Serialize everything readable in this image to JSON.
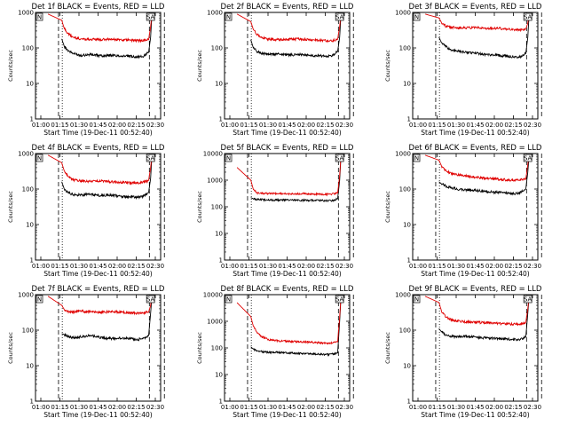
{
  "colors": {
    "events": "#000000",
    "lld": "#e00000",
    "background": "#ffffff",
    "axes": "#000000"
  },
  "chart_data": [
    {
      "type": "line",
      "title": "Det 1f BLACK = Events, RED = LLD",
      "xlabel": "Start Time (19-Dec-11 00:52:40)",
      "ylabel": "Counts/sec",
      "y_scale": "log",
      "ylim": [
        1,
        1000
      ],
      "yticks": [
        "1",
        "10",
        "100",
        "1000"
      ],
      "xlim_minutes": [
        -10,
        40
      ],
      "xticks": [
        "01:00",
        "01:15",
        "01:30",
        "01:45",
        "02:00",
        "02:15",
        "02:30"
      ],
      "tags": [
        "N",
        "SA"
      ],
      "vlines_dotted": [
        0.7
      ],
      "vlines_dashed": [
        -0.8,
        35.5,
        41.5
      ],
      "grid": false,
      "series": [
        {
          "name": "Events",
          "color": "#000000",
          "x": [
            0.5,
            1.5,
            3,
            5,
            8,
            12,
            16,
            20,
            24,
            28,
            31,
            33,
            35.2,
            36,
            36.5
          ],
          "y": [
            180,
            110,
            85,
            70,
            62,
            65,
            60,
            62,
            60,
            58,
            56,
            57,
            75,
            200,
            900
          ]
        },
        {
          "name": "LLD",
          "color": "#e00000",
          "x": [
            -5,
            0.5,
            1.5,
            3,
            5,
            8,
            12,
            16,
            20,
            24,
            28,
            31,
            33,
            35.2,
            36,
            36.5
          ],
          "y": [
            900,
            600,
            350,
            250,
            200,
            180,
            175,
            170,
            175,
            170,
            165,
            160,
            165,
            170,
            400,
            900
          ]
        }
      ]
    },
    {
      "type": "line",
      "title": "Det 2f BLACK = Events, RED = LLD",
      "xlabel": "Start Time (19-Dec-11 00:52:40)",
      "ylabel": "Counts/sec",
      "y_scale": "log",
      "ylim": [
        1,
        1000
      ],
      "yticks": [
        "1",
        "10",
        "100",
        "1000"
      ],
      "xlim_minutes": [
        -10,
        40
      ],
      "xticks": [
        "01:00",
        "01:15",
        "01:30",
        "01:45",
        "02:00",
        "02:15",
        "02:30"
      ],
      "tags": [
        "N",
        "SA"
      ],
      "vlines_dotted": [
        0.7
      ],
      "vlines_dashed": [
        -0.8,
        35.5,
        41.5
      ],
      "grid": false,
      "series": [
        {
          "name": "Events",
          "color": "#000000",
          "x": [
            0.5,
            1.5,
            3,
            5,
            8,
            12,
            16,
            20,
            24,
            28,
            31,
            33,
            35.2,
            36,
            36.5
          ],
          "y": [
            170,
            100,
            80,
            70,
            65,
            68,
            63,
            65,
            62,
            60,
            58,
            60,
            80,
            200,
            900
          ]
        },
        {
          "name": "LLD",
          "color": "#e00000",
          "x": [
            -5,
            0.5,
            1.5,
            3,
            5,
            8,
            12,
            16,
            20,
            24,
            28,
            31,
            33,
            35.2,
            36,
            36.5
          ],
          "y": [
            900,
            550,
            330,
            240,
            190,
            175,
            170,
            175,
            180,
            170,
            165,
            160,
            160,
            175,
            400,
            900
          ]
        }
      ]
    },
    {
      "type": "line",
      "title": "Det 3f BLACK = Events, RED = LLD",
      "xlabel": "Start Time (19-Dec-11 00:52:40)",
      "ylabel": "Counts/sec",
      "y_scale": "log",
      "ylim": [
        1,
        1000
      ],
      "yticks": [
        "1",
        "10",
        "100",
        "1000"
      ],
      "xlim_minutes": [
        -10,
        40
      ],
      "xticks": [
        "01:00",
        "01:15",
        "01:30",
        "01:45",
        "02:00",
        "02:15",
        "02:30"
      ],
      "tags": [
        "N",
        "SA"
      ],
      "vlines_dotted": [
        0.7
      ],
      "vlines_dashed": [
        -0.8,
        35.5,
        41.5
      ],
      "grid": false,
      "series": [
        {
          "name": "Events",
          "color": "#000000",
          "x": [
            0.5,
            1.5,
            3,
            5,
            8,
            12,
            16,
            20,
            24,
            28,
            31,
            33,
            35.2,
            36,
            36.5
          ],
          "y": [
            200,
            140,
            110,
            90,
            80,
            75,
            70,
            65,
            62,
            58,
            55,
            56,
            70,
            200,
            900
          ]
        },
        {
          "name": "LLD",
          "color": "#e00000",
          "x": [
            -5,
            0.5,
            1.5,
            3,
            5,
            8,
            12,
            16,
            20,
            24,
            28,
            31,
            33,
            35.2,
            36,
            36.5
          ],
          "y": [
            900,
            700,
            520,
            420,
            380,
            370,
            370,
            365,
            360,
            355,
            340,
            330,
            320,
            340,
            500,
            900
          ]
        }
      ]
    },
    {
      "type": "line",
      "title": "Det 4f BLACK = Events, RED = LLD",
      "xlabel": "Start Time (19-Dec-11 00:52:40)",
      "ylabel": "Counts/sec",
      "y_scale": "log",
      "ylim": [
        1,
        1000
      ],
      "yticks": [
        "1",
        "10",
        "100",
        "1000"
      ],
      "xlim_minutes": [
        -10,
        40
      ],
      "xticks": [
        "01:00",
        "01:15",
        "01:30",
        "01:45",
        "02:00",
        "02:15",
        "02:30"
      ],
      "tags": [
        "N",
        "SA"
      ],
      "vlines_dotted": [
        0.7
      ],
      "vlines_dashed": [
        -0.8,
        35.5,
        41.5
      ],
      "grid": false,
      "series": [
        {
          "name": "Events",
          "color": "#000000",
          "x": [
            0.5,
            1.5,
            3,
            5,
            8,
            12,
            16,
            20,
            24,
            28,
            31,
            33,
            35.2,
            36,
            36.5
          ],
          "y": [
            160,
            100,
            80,
            70,
            68,
            72,
            65,
            68,
            62,
            60,
            58,
            62,
            80,
            200,
            900
          ]
        },
        {
          "name": "LLD",
          "color": "#e00000",
          "x": [
            -5,
            0.5,
            1.5,
            3,
            5,
            8,
            12,
            16,
            20,
            24,
            28,
            31,
            33,
            35.2,
            36,
            36.5
          ],
          "y": [
            900,
            550,
            320,
            230,
            180,
            170,
            165,
            170,
            160,
            155,
            150,
            150,
            155,
            175,
            400,
            900
          ]
        }
      ]
    },
    {
      "type": "line",
      "title": "Det 5f BLACK = Events, RED = LLD",
      "xlabel": "Start Time (19-Dec-11 00:52:40)",
      "ylabel": "Counts/sec",
      "y_scale": "log",
      "ylim": [
        1,
        10000
      ],
      "yticks": [
        "1",
        "10",
        "100",
        "1000",
        "10000"
      ],
      "xlim_minutes": [
        -10,
        40
      ],
      "xticks": [
        "01:00",
        "01:15",
        "01:30",
        "01:45",
        "02:00",
        "02:15",
        "02:30"
      ],
      "tags": [
        "N",
        "SA"
      ],
      "vlines_dotted": [
        0.7
      ],
      "vlines_dashed": [
        -0.8,
        35.5,
        41.5
      ],
      "grid": false,
      "series": [
        {
          "name": "Events",
          "color": "#000000",
          "x": [
            0.5,
            1.5,
            3,
            5,
            8,
            12,
            16,
            20,
            24,
            28,
            31,
            33,
            35.2,
            36,
            36.5
          ],
          "y": [
            220,
            200,
            190,
            185,
            180,
            180,
            178,
            175,
            175,
            172,
            170,
            170,
            200,
            1000,
            8000
          ]
        },
        {
          "name": "LLD",
          "color": "#e00000",
          "x": [
            -5,
            0.5,
            1.5,
            3,
            5,
            8,
            12,
            16,
            20,
            24,
            28,
            31,
            33,
            35.2,
            36,
            36.5
          ],
          "y": [
            3000,
            1000,
            450,
            330,
            320,
            315,
            310,
            305,
            310,
            305,
            300,
            295,
            300,
            330,
            1500,
            8000
          ]
        }
      ]
    },
    {
      "type": "line",
      "title": "Det 6f BLACK = Events, RED = LLD",
      "xlabel": "Start Time (19-Dec-11 00:52:40)",
      "ylabel": "Counts/sec",
      "y_scale": "log",
      "ylim": [
        1,
        1000
      ],
      "yticks": [
        "1",
        "10",
        "100",
        "1000"
      ],
      "xlim_minutes": [
        -10,
        40
      ],
      "xticks": [
        "01:00",
        "01:15",
        "01:30",
        "01:45",
        "02:00",
        "02:15",
        "02:30"
      ],
      "tags": [
        "N",
        "SA"
      ],
      "vlines_dotted": [
        0.7
      ],
      "vlines_dashed": [
        -0.8,
        35.5,
        41.5
      ],
      "grid": false,
      "series": [
        {
          "name": "Events",
          "color": "#000000",
          "x": [
            0.5,
            1.5,
            3,
            5,
            8,
            12,
            16,
            20,
            24,
            28,
            31,
            33,
            35.2,
            36,
            36.5
          ],
          "y": [
            160,
            140,
            125,
            110,
            100,
            95,
            90,
            85,
            80,
            78,
            75,
            80,
            100,
            300,
            900
          ]
        },
        {
          "name": "LLD",
          "color": "#e00000",
          "x": [
            -5,
            0.5,
            1.5,
            3,
            5,
            8,
            12,
            16,
            20,
            24,
            28,
            31,
            33,
            35.2,
            36,
            36.5
          ],
          "y": [
            900,
            650,
            450,
            330,
            280,
            250,
            230,
            210,
            200,
            190,
            180,
            175,
            180,
            190,
            500,
            900
          ]
        }
      ]
    },
    {
      "type": "line",
      "title": "Det 7f BLACK = Events, RED = LLD",
      "xlabel": "Start Time (19-Dec-11 00:52:40)",
      "ylabel": "Counts/sec",
      "y_scale": "log",
      "ylim": [
        1,
        1000
      ],
      "yticks": [
        "1",
        "10",
        "100",
        "1000"
      ],
      "xlim_minutes": [
        -10,
        40
      ],
      "xticks": [
        "01:00",
        "01:15",
        "01:30",
        "01:45",
        "02:00",
        "02:15",
        "02:30"
      ],
      "tags": [
        "N",
        "SA"
      ],
      "vlines_dotted": [
        0.7
      ],
      "vlines_dashed": [
        -0.8,
        35.5,
        41.5
      ],
      "grid": false,
      "series": [
        {
          "name": "Events",
          "color": "#000000",
          "x": [
            0.5,
            1.5,
            3,
            5,
            8,
            12,
            16,
            20,
            24,
            28,
            31,
            33,
            35.2,
            36,
            36.5
          ],
          "y": [
            80,
            75,
            65,
            62,
            65,
            70,
            62,
            58,
            60,
            58,
            55,
            58,
            70,
            300,
            900
          ]
        },
        {
          "name": "LLD",
          "color": "#e00000",
          "x": [
            -5,
            0.5,
            1.5,
            3,
            5,
            8,
            12,
            16,
            20,
            24,
            28,
            31,
            33,
            35.2,
            36,
            36.5
          ],
          "y": [
            900,
            500,
            380,
            340,
            330,
            340,
            330,
            320,
            330,
            320,
            310,
            300,
            310,
            320,
            500,
            900
          ]
        }
      ]
    },
    {
      "type": "line",
      "title": "Det 8f BLACK = Events, RED = LLD",
      "xlabel": "Start Time (19-Dec-11 00:52:40)",
      "ylabel": "Counts/sec",
      "y_scale": "log",
      "ylim": [
        1,
        10000
      ],
      "yticks": [
        "1",
        "10",
        "100",
        "1000",
        "10000"
      ],
      "xlim_minutes": [
        -10,
        40
      ],
      "xticks": [
        "01:00",
        "01:15",
        "01:30",
        "01:45",
        "02:00",
        "02:15",
        "02:30"
      ],
      "tags": [
        "N",
        "SA"
      ],
      "vlines_dotted": [
        0.7
      ],
      "vlines_dashed": [
        -0.8,
        35.5,
        41.5
      ],
      "grid": false,
      "series": [
        {
          "name": "Events",
          "color": "#000000",
          "x": [
            0.5,
            1.5,
            3,
            5,
            8,
            12,
            16,
            20,
            24,
            28,
            31,
            33,
            35.2,
            36,
            36.5
          ],
          "y": [
            110,
            90,
            80,
            72,
            68,
            68,
            65,
            62,
            60,
            58,
            56,
            58,
            65,
            1000,
            8000
          ]
        },
        {
          "name": "LLD",
          "color": "#e00000",
          "x": [
            -5,
            0.5,
            1.5,
            3,
            5,
            8,
            12,
            16,
            20,
            24,
            28,
            31,
            33,
            35.2,
            36,
            36.5
          ],
          "y": [
            5000,
            1500,
            650,
            380,
            260,
            200,
            180,
            175,
            170,
            165,
            155,
            150,
            155,
            170,
            1500,
            8000
          ]
        }
      ]
    },
    {
      "type": "line",
      "title": "Det 9f BLACK = Events, RED = LLD",
      "xlabel": "Start Time (19-Dec-11 00:52:40)",
      "ylabel": "Counts/sec",
      "y_scale": "log",
      "ylim": [
        1,
        1000
      ],
      "yticks": [
        "1",
        "10",
        "100",
        "1000"
      ],
      "xlim_minutes": [
        -10,
        40
      ],
      "xticks": [
        "01:00",
        "01:15",
        "01:30",
        "01:45",
        "02:00",
        "02:15",
        "02:30"
      ],
      "tags": [
        "N",
        "SA"
      ],
      "vlines_dotted": [
        0.7
      ],
      "vlines_dashed": [
        -0.8,
        35.5,
        41.5
      ],
      "grid": false,
      "series": [
        {
          "name": "Events",
          "color": "#000000",
          "x": [
            0.5,
            1.5,
            3,
            5,
            8,
            12,
            16,
            20,
            24,
            28,
            31,
            33,
            35.2,
            36,
            36.5
          ],
          "y": [
            110,
            90,
            75,
            68,
            65,
            68,
            62,
            60,
            58,
            56,
            54,
            55,
            65,
            300,
            900
          ]
        },
        {
          "name": "LLD",
          "color": "#e00000",
          "x": [
            -5,
            0.5,
            1.5,
            3,
            5,
            8,
            12,
            16,
            20,
            24,
            28,
            31,
            33,
            35.2,
            36,
            36.5
          ],
          "y": [
            900,
            600,
            350,
            250,
            200,
            180,
            170,
            165,
            160,
            155,
            150,
            148,
            150,
            165,
            400,
            900
          ]
        }
      ]
    }
  ]
}
